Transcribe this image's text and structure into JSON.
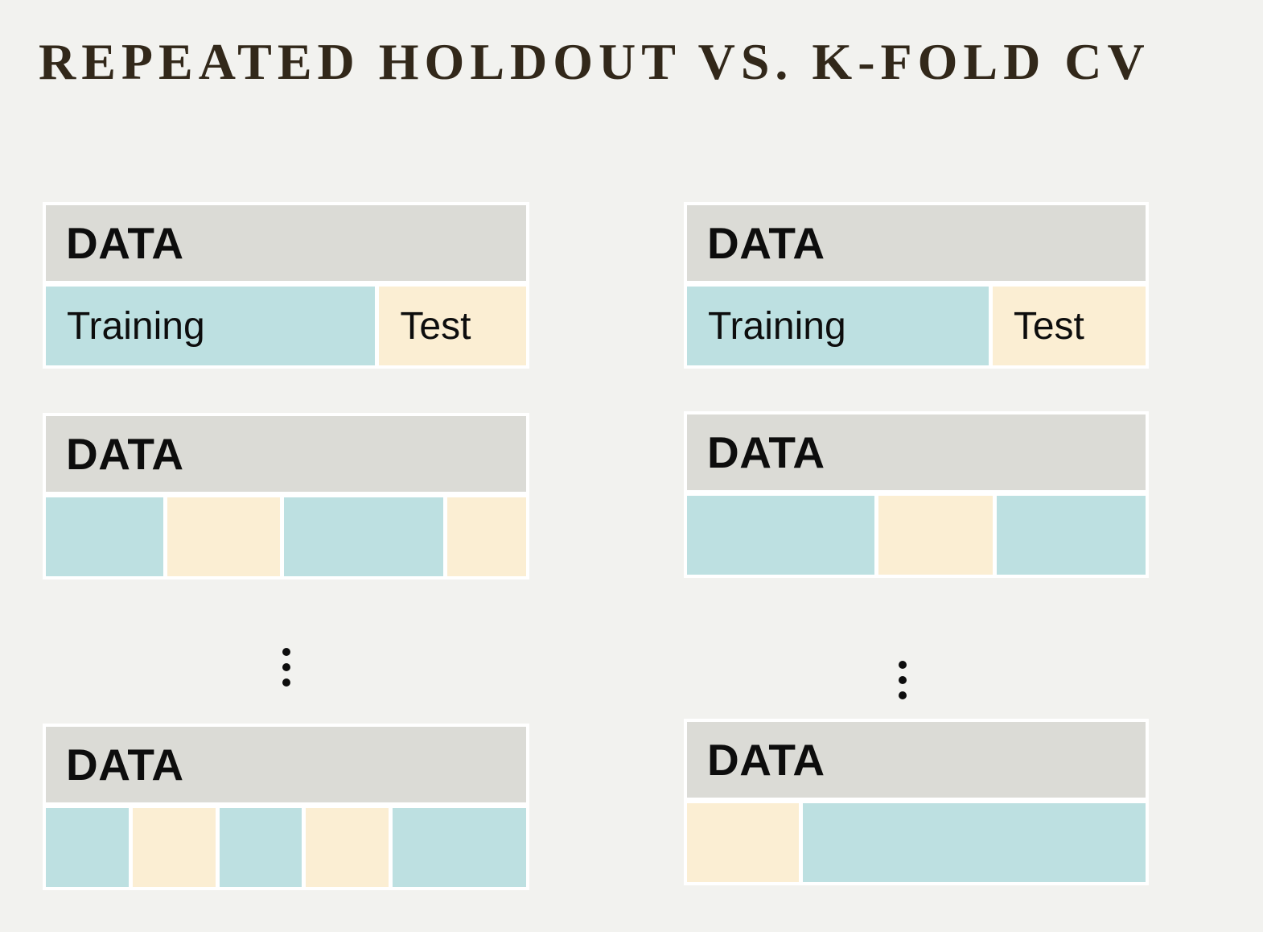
{
  "title": "REPEATED HOLDOUT VS. K-FOLD CV",
  "colors": {
    "background": "#f2f2ef",
    "panel": "#ffffff",
    "header_fill": "#dbdbd6",
    "training_fill": "#bde0e1",
    "test_fill": "#fbeed3",
    "title_color": "#32281a",
    "text_color": "#0d0d0d"
  },
  "icons": {
    "between_groups": "vertical-ellipsis-icon"
  },
  "columns": [
    {
      "name": "repeated-holdout",
      "groups": [
        {
          "header_label": "DATA",
          "segments": [
            {
              "kind": "training",
              "label": "Training",
              "pct": 71
            },
            {
              "kind": "test",
              "label": "Test",
              "pct": 29
            }
          ]
        },
        {
          "header_label": "DATA",
          "segments": [
            {
              "kind": "training",
              "label": "",
              "pct": 25
            },
            {
              "kind": "test",
              "label": "",
              "pct": 24
            },
            {
              "kind": "training",
              "label": "",
              "pct": 36
            },
            {
              "kind": "test",
              "label": "",
              "pct": 15
            }
          ]
        },
        {
          "header_label": "DATA",
          "segments": [
            {
              "kind": "training",
              "label": "",
              "pct": 17
            },
            {
              "kind": "test",
              "label": "",
              "pct": 17
            },
            {
              "kind": "training",
              "label": "",
              "pct": 17
            },
            {
              "kind": "test",
              "label": "",
              "pct": 17
            },
            {
              "kind": "training",
              "label": "",
              "pct": 31
            }
          ]
        }
      ]
    },
    {
      "name": "k-fold-cv",
      "groups": [
        {
          "header_label": "DATA",
          "segments": [
            {
              "kind": "training",
              "label": "Training",
              "pct": 68
            },
            {
              "kind": "test",
              "label": "Test",
              "pct": 32
            }
          ]
        },
        {
          "header_label": "DATA",
          "segments": [
            {
              "kind": "training",
              "label": "",
              "pct": 43
            },
            {
              "kind": "test",
              "label": "",
              "pct": 24
            },
            {
              "kind": "training",
              "label": "",
              "pct": 33
            }
          ]
        },
        {
          "header_label": "DATA",
          "segments": [
            {
              "kind": "test",
              "label": "",
              "pct": 22
            },
            {
              "kind": "training",
              "label": "",
              "pct": 78
            }
          ]
        }
      ]
    }
  ]
}
